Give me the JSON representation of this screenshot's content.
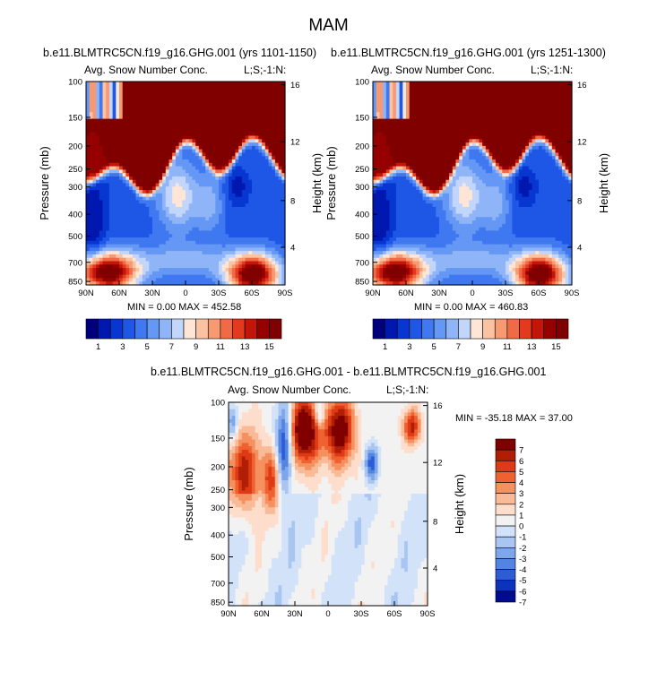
{
  "figure_title": "MAM",
  "chart_data": [
    {
      "type": "heatmap",
      "title": "b.e11.BLMTRC5CN.f19_g16.GHG.001 (yrs 1101-1150)",
      "left_subtitle": "Avg. Snow Number Conc.",
      "right_subtitle": "L;S;-1:N:",
      "ylabel": "Pressure (mb)",
      "ylabel_right": "Height (km)",
      "x_ticks": [
        "90N",
        "60N",
        "30N",
        "0",
        "30S",
        "60S",
        "90S"
      ],
      "y_ticks": [
        "100",
        "150",
        "200",
        "250",
        "300",
        "400",
        "500",
        "700",
        "850"
      ],
      "y_ticks_right": [
        "16",
        "12",
        "8",
        "4"
      ],
      "stats": "MIN =   0.00  MAX = 452.58",
      "colorbar_labels": [
        "1",
        "3",
        "5",
        "7",
        "9",
        "11",
        "13",
        "15"
      ],
      "colorbar_levels": 15
    },
    {
      "type": "heatmap",
      "title": "b.e11.BLMTRC5CN.f19_g16.GHG.001 (yrs 1251-1300)",
      "left_subtitle": "Avg. Snow Number Conc.",
      "right_subtitle": "L;S;-1:N:",
      "ylabel": "Pressure (mb)",
      "ylabel_right": "Height (km)",
      "x_ticks": [
        "90N",
        "60N",
        "30N",
        "0",
        "30S",
        "60S",
        "90S"
      ],
      "y_ticks": [
        "100",
        "150",
        "200",
        "250",
        "300",
        "400",
        "500",
        "700",
        "850"
      ],
      "y_ticks_right": [
        "16",
        "12",
        "8",
        "4"
      ],
      "stats": "MIN =   0.00  MAX = 460.83",
      "colorbar_labels": [
        "1",
        "3",
        "5",
        "7",
        "9",
        "11",
        "13",
        "15"
      ],
      "colorbar_levels": 15
    },
    {
      "type": "heatmap",
      "title": "b.e11.BLMTRC5CN.f19_g16.GHG.001 - b.e11.BLMTRC5CN.f19_g16.GHG.001",
      "left_subtitle": "Avg. Snow Number Conc.",
      "right_subtitle": "L;S;-1:N:",
      "ylabel": "Pressure (mb)",
      "ylabel_right": "Height (km)",
      "x_ticks": [
        "90N",
        "60N",
        "30N",
        "0",
        "30S",
        "60S",
        "90S"
      ],
      "y_ticks": [
        "100",
        "150",
        "200",
        "250",
        "300",
        "400",
        "500",
        "700",
        "850"
      ],
      "y_ticks_right": [
        "16",
        "12",
        "8",
        "4"
      ],
      "stats": "MIN = -35.18  MAX =  37.00",
      "colorbar_labels": [
        "7",
        "6",
        "5",
        "4",
        "3",
        "2",
        "1",
        "0",
        "-1",
        "-2",
        "-3",
        "-4",
        "-5",
        "-6",
        "-7"
      ]
    }
  ],
  "colors": {
    "full_scale": [
      "#00007f",
      "#0018b0",
      "#0737d0",
      "#1e56e6",
      "#3f78f0",
      "#6597f5",
      "#8fb5f8",
      "#c2d6fb",
      "#fde6d6",
      "#fbc3a2",
      "#f79a72",
      "#f06a45",
      "#e33a1e",
      "#c2160a",
      "#950000",
      "#800000"
    ],
    "diff_scale": [
      "#800000",
      "#b01e05",
      "#dd3a15",
      "#ef6130",
      "#f5905f",
      "#f9ba98",
      "#fdddcb",
      "#f2f2f2",
      "#d2e2f8",
      "#a9c5f1",
      "#7ea6ea",
      "#5284e2",
      "#2c5dd6",
      "#0d33bc",
      "#000b90"
    ]
  }
}
